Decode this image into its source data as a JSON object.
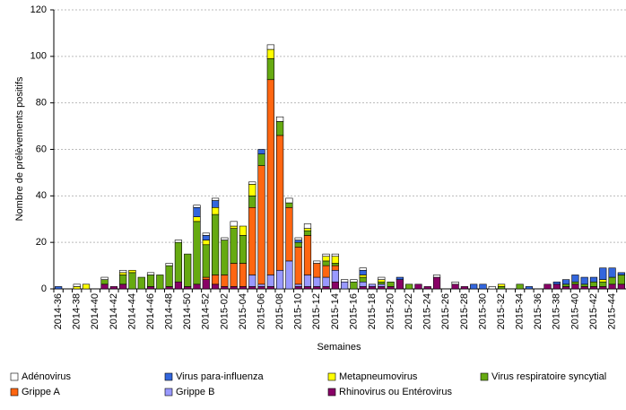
{
  "chart_data": {
    "type": "stacked_bar",
    "y_label": "Nombre de prélèvements positifs",
    "x_label": "Semaines",
    "categories": [
      "2014-36",
      null,
      "2014-38",
      null,
      "2014-40",
      null,
      "2014-42",
      null,
      "2014-44",
      null,
      "2014-46",
      null,
      "2014-48",
      null,
      "2014-50",
      null,
      "2014-52",
      null,
      "2015-02",
      null,
      "2015-04",
      null,
      "2015-06",
      null,
      "2015-08",
      null,
      "2015-10",
      null,
      "2015-12",
      null,
      "2015-14",
      null,
      "2015-16",
      null,
      "2015-18",
      null,
      "2015-20",
      null,
      "2015-22",
      null,
      "2015-24",
      null,
      "2015-26",
      null,
      "2015-28",
      null,
      "2015-30",
      null,
      "2015-32",
      null,
      "2015-34",
      null,
      "2015-36",
      null,
      "2015-38",
      null,
      "2015-40",
      null,
      "2015-42",
      null,
      "2015-44",
      null
    ],
    "series": [
      {
        "name": "Adénovirus",
        "color": "#ffffff",
        "values": [
          0,
          0,
          1,
          0,
          0,
          1,
          0,
          1,
          0,
          0,
          1,
          0,
          1,
          1,
          0,
          1,
          1,
          1,
          1,
          2,
          0,
          1,
          0,
          2,
          2,
          2,
          1,
          2,
          1,
          1,
          1,
          1,
          1,
          1,
          0,
          1,
          0,
          0,
          0,
          0,
          0,
          1,
          0,
          1,
          0,
          0,
          0,
          1,
          0,
          0,
          0,
          0,
          0,
          0,
          0,
          0,
          0,
          0,
          0,
          0,
          0,
          0
        ]
      },
      {
        "name": "Virus para-influenza",
        "color": "#3366dd",
        "values": [
          1,
          0,
          0,
          0,
          0,
          0,
          0,
          0,
          0,
          0,
          0,
          0,
          0,
          0,
          0,
          4,
          2,
          3,
          0,
          0,
          0,
          0,
          2,
          0,
          0,
          0,
          1,
          0,
          0,
          0,
          0,
          0,
          0,
          2,
          0,
          0,
          0,
          1,
          0,
          0,
          0,
          0,
          0,
          0,
          0,
          2,
          2,
          0,
          0,
          0,
          0,
          1,
          0,
          0,
          1,
          2,
          3,
          3,
          2,
          5,
          4,
          1
        ]
      },
      {
        "name": "Metapneumovirus",
        "color": "#ffff00",
        "values": [
          0,
          0,
          1,
          2,
          0,
          0,
          0,
          1,
          1,
          0,
          0,
          0,
          0,
          0,
          0,
          2,
          2,
          3,
          0,
          1,
          4,
          5,
          0,
          4,
          0,
          0,
          0,
          1,
          0,
          2,
          3,
          0,
          0,
          1,
          0,
          1,
          0,
          0,
          0,
          0,
          0,
          0,
          0,
          0,
          0,
          0,
          0,
          0,
          1,
          0,
          0,
          0,
          0,
          0,
          0,
          0,
          0,
          0,
          0,
          1,
          0,
          0
        ]
      },
      {
        "name": "Virus respiratoire syncytial",
        "color": "#66aa11",
        "values": [
          0,
          0,
          0,
          0,
          0,
          2,
          0,
          4,
          7,
          5,
          5,
          6,
          9,
          17,
          14,
          27,
          14,
          26,
          15,
          15,
          12,
          5,
          5,
          9,
          6,
          2,
          2,
          2,
          0,
          2,
          1,
          0,
          3,
          2,
          0,
          1,
          2,
          0,
          2,
          0,
          0,
          0,
          0,
          0,
          0,
          0,
          0,
          0,
          1,
          0,
          2,
          0,
          0,
          0,
          0,
          1,
          1,
          1,
          2,
          2,
          3,
          4
        ]
      },
      {
        "name": "Grippe A",
        "color": "#ff6611",
        "values": [
          0,
          0,
          0,
          0,
          0,
          0,
          0,
          0,
          0,
          0,
          0,
          0,
          0,
          0,
          0,
          0,
          1,
          4,
          5,
          10,
          10,
          29,
          51,
          84,
          58,
          23,
          16,
          17,
          6,
          5,
          2,
          0,
          0,
          0,
          0,
          0,
          0,
          0,
          0,
          0,
          0,
          0,
          0,
          0,
          0,
          0,
          0,
          0,
          0,
          0,
          0,
          0,
          0,
          0,
          0,
          0,
          0,
          0,
          0,
          0,
          0,
          0
        ]
      },
      {
        "name": "Grippe B",
        "color": "#9999ff",
        "values": [
          0,
          0,
          0,
          0,
          0,
          0,
          0,
          0,
          0,
          0,
          0,
          0,
          0,
          0,
          0,
          0,
          0,
          0,
          0,
          0,
          0,
          5,
          1,
          5,
          8,
          12,
          1,
          5,
          4,
          4,
          5,
          3,
          0,
          2,
          1,
          1,
          0,
          0,
          0,
          0,
          0,
          0,
          0,
          0,
          0,
          0,
          0,
          0,
          0,
          0,
          0,
          0,
          0,
          0,
          0,
          0,
          0,
          0,
          0,
          0,
          0,
          0
        ]
      },
      {
        "name": "Rhinovirus ou Entérovirus",
        "color": "#880066",
        "values": [
          0,
          0,
          0,
          0,
          0,
          2,
          1,
          2,
          0,
          0,
          1,
          0,
          1,
          3,
          1,
          2,
          4,
          2,
          1,
          1,
          1,
          1,
          1,
          1,
          0,
          0,
          1,
          1,
          1,
          1,
          3,
          0,
          0,
          1,
          1,
          1,
          1,
          4,
          0,
          2,
          1,
          5,
          0,
          2,
          1,
          0,
          0,
          0,
          0,
          0,
          0,
          0,
          0,
          2,
          2,
          1,
          2,
          1,
          1,
          1,
          2,
          2
        ]
      }
    ],
    "ylim": [
      0,
      120
    ],
    "yticks": [
      0,
      20,
      40,
      60,
      80,
      100,
      120
    ],
    "grid": true,
    "legend": "bottom"
  }
}
